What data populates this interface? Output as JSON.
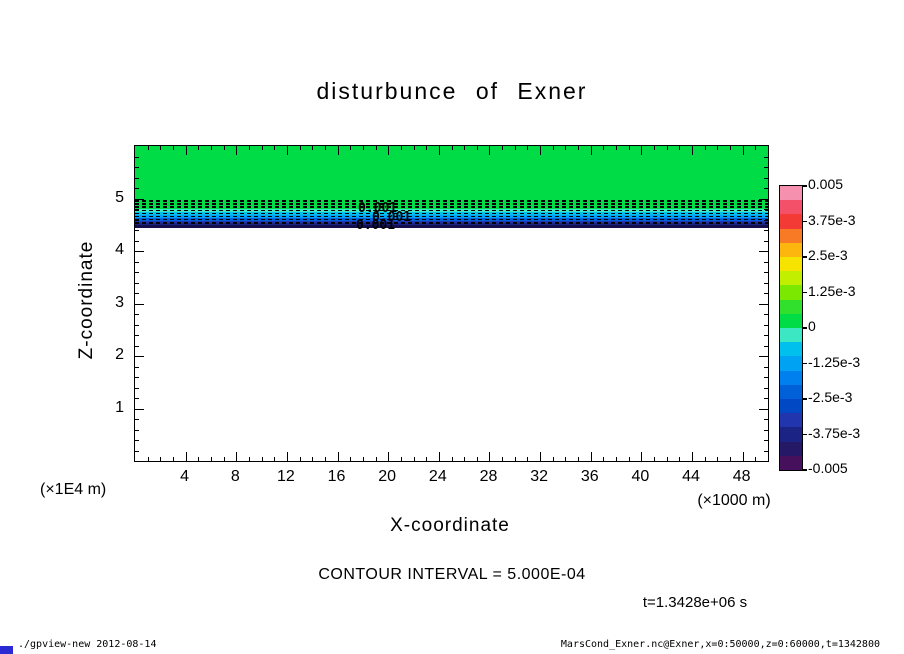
{
  "title": "disturbunce of Exner",
  "axes": {
    "x_label": "X-coordinate",
    "y_label": "Z-coordinate",
    "x_unit": "(×1000 m)",
    "y_unit": "(×1E4 m)"
  },
  "annotations": {
    "contour_interval": "CONTOUR INTERVAL = 5.000E-04",
    "time": "t=1.3428e+06 s",
    "contour_labels": [
      "0.001",
      "0.001",
      "0.001"
    ]
  },
  "footer": {
    "left": "./gpview-new  2012-08-14",
    "right": "MarsCond_Exner.nc@Exner,x=0:50000,z=0:60000,t=1342800"
  },
  "colors": {
    "background": "#ffffff",
    "frame": "#000000",
    "zero_fill": "#00dc46",
    "corner_mark": "#2b2bd6"
  },
  "chart_data": {
    "type": "heatmap",
    "title": "disturbunce of Exner",
    "xlabel": "X-coordinate (×1000 m)",
    "ylabel": "Z-coordinate (×1E4 m)",
    "xlim": [
      0,
      50
    ],
    "ylim": [
      0,
      6
    ],
    "x_ticks": [
      4,
      8,
      12,
      16,
      20,
      24,
      28,
      32,
      36,
      40,
      44,
      48
    ],
    "y_ticks": [
      1,
      2,
      3,
      4,
      5
    ],
    "contour_interval": 0.0005,
    "time_label": "t=1.3428e+06 s",
    "description": "Exner function disturbance: uniform value ~0 (green fill) above z≈4.8; thin negative band (down to ≈ -0.005, dashed contours) centered near z≈4.55; field undefined/white below z≈4.43.",
    "regions": [
      {
        "color": "#00dc46",
        "z_top": 6.0,
        "z_bot": 4.8
      },
      {
        "color": "#3ce8c4",
        "z_top": 4.8,
        "z_bot": 4.74
      },
      {
        "color": "#00c0ee",
        "z_top": 4.74,
        "z_bot": 4.68
      },
      {
        "color": "#00a2f4",
        "z_top": 4.68,
        "z_bot": 4.63
      },
      {
        "color": "#0060d8",
        "z_top": 4.63,
        "z_bot": 4.58
      },
      {
        "color": "#2136ae",
        "z_top": 4.58,
        "z_bot": 4.54
      },
      {
        "color": "#1b2384",
        "z_top": 4.54,
        "z_bot": 4.5
      },
      {
        "color": "#160f4e",
        "z_top": 4.5,
        "z_bot": 4.43
      }
    ],
    "dashed_contour_z": [
      4.97,
      4.91,
      4.85,
      4.79,
      4.73,
      4.67,
      4.61,
      4.55
    ],
    "colorbar": {
      "levels": [
        "0.005",
        "3.75e-3",
        "2.5e-3",
        "1.25e-3",
        "0",
        "-1.25e-3",
        "-2.5e-3",
        "-3.75e-3",
        "-0.005"
      ],
      "colors": [
        "#f590ae",
        "#f4506a",
        "#f43a34",
        "#f87a24",
        "#fcb60e",
        "#f6e400",
        "#c2ee00",
        "#7ae800",
        "#30e02c",
        "#00dc46",
        "#3ce8c4",
        "#00c0ee",
        "#00a2f4",
        "#0080ee",
        "#0060d8",
        "#0048c4",
        "#2136ae",
        "#1b2384",
        "#251866",
        "#46105c"
      ]
    }
  }
}
